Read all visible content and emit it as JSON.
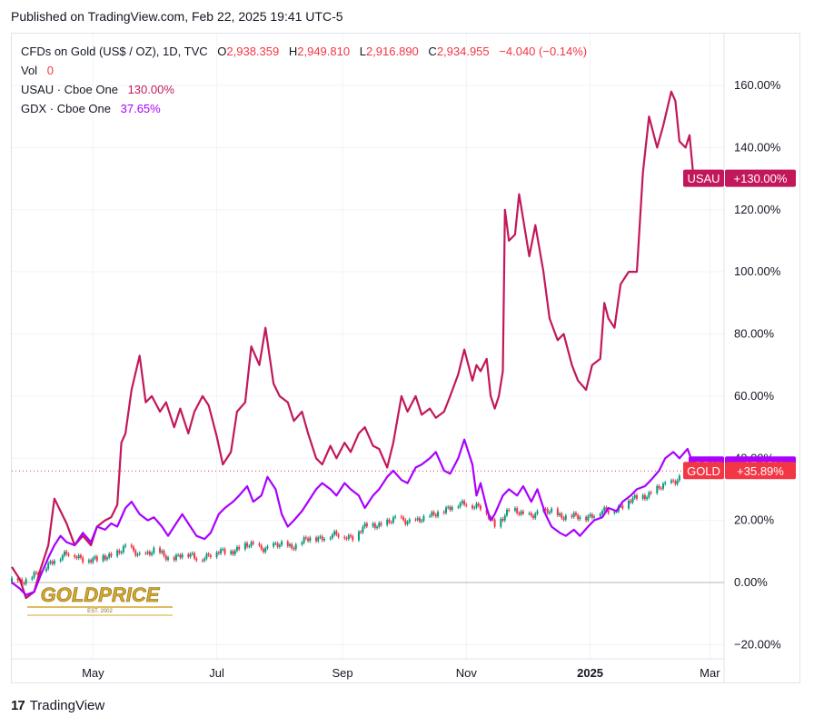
{
  "header": {
    "published": "Published on TradingView.com, Feb 22, 2025 19:41 UTC-5"
  },
  "legend": {
    "main_title": "CFDs on Gold (US$ / OZ), 1D, TVC",
    "open_label": "O",
    "open_value": "2,938.359",
    "high_label": "H",
    "high_value": "2,949.810",
    "low_label": "L",
    "low_value": "2,916.890",
    "close_label": "C",
    "close_value": "2,934.955",
    "change_value": "−4.040 (−0.14%)",
    "vol_label": "Vol",
    "vol_value": "0",
    "usau_label": "USAU · Cboe One",
    "usau_value": "130.00%",
    "gdx_label": "GDX · Cboe One",
    "gdx_value": "37.65%"
  },
  "watermark": {
    "brand": "GOLDPRICE",
    "tagline": "EST. 2002"
  },
  "footer": {
    "brand": "TradingView"
  },
  "colors": {
    "usau": "#c2185b",
    "gdx": "#aa00ff",
    "gold_up": "#089981",
    "gold_down": "#f23645",
    "grid": "#f0f3fa"
  },
  "chart_data": {
    "type": "line",
    "y_unit": "%",
    "ylim": [
      -22,
      170
    ],
    "y_ticks": [
      "160.00%",
      "140.00%",
      "120.00%",
      "100.00%",
      "80.00%",
      "60.00%",
      "40.00%",
      "20.00%",
      "0.00%",
      "−20.00%"
    ],
    "y_tick_values": [
      160,
      140,
      120,
      100,
      80,
      60,
      40,
      20,
      0,
      -20
    ],
    "x_range": [
      "2024-03-22",
      "2025-03-08"
    ],
    "x_ticks": [
      {
        "label": "May",
        "date": "2024-05-01"
      },
      {
        "label": "Jul",
        "date": "2024-07-01"
      },
      {
        "label": "Sep",
        "date": "2024-09-01"
      },
      {
        "label": "Nov",
        "date": "2024-11-01"
      },
      {
        "label": "2025",
        "date": "2025-01-01",
        "bold": true
      },
      {
        "label": "Mar",
        "date": "2025-03-01"
      }
    ],
    "grid": true,
    "baseline_value": 0,
    "series": [
      {
        "name": "USAU",
        "badge": "USAU",
        "badge_value": "+130.00%",
        "last": 130.0,
        "points": [
          [
            "2024-03-22",
            5
          ],
          [
            "2024-03-26",
            1
          ],
          [
            "2024-03-29",
            -5
          ],
          [
            "2024-04-02",
            -3
          ],
          [
            "2024-04-05",
            4
          ],
          [
            "2024-04-09",
            12
          ],
          [
            "2024-04-12",
            27
          ],
          [
            "2024-04-15",
            23
          ],
          [
            "2024-04-18",
            19
          ],
          [
            "2024-04-22",
            12
          ],
          [
            "2024-04-26",
            15
          ],
          [
            "2024-04-30",
            12
          ],
          [
            "2024-05-03",
            18
          ],
          [
            "2024-05-07",
            20
          ],
          [
            "2024-05-10",
            21
          ],
          [
            "2024-05-13",
            25
          ],
          [
            "2024-05-15",
            45
          ],
          [
            "2024-05-17",
            48
          ],
          [
            "2024-05-20",
            62
          ],
          [
            "2024-05-24",
            73
          ],
          [
            "2024-05-27",
            58
          ],
          [
            "2024-05-30",
            60
          ],
          [
            "2024-06-03",
            55
          ],
          [
            "2024-06-06",
            58
          ],
          [
            "2024-06-10",
            50
          ],
          [
            "2024-06-13",
            56
          ],
          [
            "2024-06-17",
            48
          ],
          [
            "2024-06-20",
            55
          ],
          [
            "2024-06-24",
            60
          ],
          [
            "2024-06-27",
            57
          ],
          [
            "2024-07-01",
            47
          ],
          [
            "2024-07-04",
            38
          ],
          [
            "2024-07-08",
            42
          ],
          [
            "2024-07-11",
            55
          ],
          [
            "2024-07-15",
            58
          ],
          [
            "2024-07-18",
            76
          ],
          [
            "2024-07-22",
            70
          ],
          [
            "2024-07-25",
            82
          ],
          [
            "2024-07-29",
            64
          ],
          [
            "2024-08-01",
            60
          ],
          [
            "2024-08-05",
            58
          ],
          [
            "2024-08-08",
            52
          ],
          [
            "2024-08-12",
            55
          ],
          [
            "2024-08-15",
            48
          ],
          [
            "2024-08-19",
            40
          ],
          [
            "2024-08-22",
            38
          ],
          [
            "2024-08-26",
            44
          ],
          [
            "2024-08-29",
            40
          ],
          [
            "2024-09-02",
            45
          ],
          [
            "2024-09-05",
            42
          ],
          [
            "2024-09-09",
            48
          ],
          [
            "2024-09-12",
            50
          ],
          [
            "2024-09-16",
            44
          ],
          [
            "2024-09-19",
            43
          ],
          [
            "2024-09-23",
            37
          ],
          [
            "2024-09-26",
            45
          ],
          [
            "2024-09-30",
            60
          ],
          [
            "2024-10-03",
            55
          ],
          [
            "2024-10-07",
            60
          ],
          [
            "2024-10-10",
            54
          ],
          [
            "2024-10-14",
            56
          ],
          [
            "2024-10-17",
            53
          ],
          [
            "2024-10-21",
            55
          ],
          [
            "2024-10-24",
            60
          ],
          [
            "2024-10-28",
            67
          ],
          [
            "2024-10-31",
            75
          ],
          [
            "2024-11-04",
            65
          ],
          [
            "2024-11-06",
            70
          ],
          [
            "2024-11-08",
            68
          ],
          [
            "2024-11-11",
            72
          ],
          [
            "2024-11-13",
            60
          ],
          [
            "2024-11-15",
            56
          ],
          [
            "2024-11-17",
            60
          ],
          [
            "2024-11-19",
            68
          ],
          [
            "2024-11-20",
            120
          ],
          [
            "2024-11-22",
            110
          ],
          [
            "2024-11-25",
            112
          ],
          [
            "2024-11-27",
            125
          ],
          [
            "2024-12-02",
            105
          ],
          [
            "2024-12-05",
            115
          ],
          [
            "2024-12-09",
            100
          ],
          [
            "2024-12-12",
            85
          ],
          [
            "2024-12-16",
            78
          ],
          [
            "2024-12-19",
            80
          ],
          [
            "2024-12-23",
            70
          ],
          [
            "2024-12-26",
            65
          ],
          [
            "2024-12-30",
            62
          ],
          [
            "2025-01-02",
            70
          ],
          [
            "2025-01-06",
            72
          ],
          [
            "2025-01-08",
            90
          ],
          [
            "2025-01-10",
            85
          ],
          [
            "2025-01-13",
            82
          ],
          [
            "2025-01-16",
            96
          ],
          [
            "2025-01-20",
            100
          ],
          [
            "2025-01-24",
            100
          ],
          [
            "2025-01-27",
            132
          ],
          [
            "2025-01-30",
            150
          ],
          [
            "2025-02-03",
            140
          ],
          [
            "2025-02-06",
            147
          ],
          [
            "2025-02-10",
            158
          ],
          [
            "2025-02-12",
            155
          ],
          [
            "2025-02-14",
            142
          ],
          [
            "2025-02-17",
            140
          ],
          [
            "2025-02-19",
            144
          ],
          [
            "2025-02-21",
            130
          ]
        ]
      },
      {
        "name": "GDX",
        "badge": "GDX",
        "badge_value": "+37.65%",
        "last": 37.65,
        "points": [
          [
            "2024-03-22",
            0
          ],
          [
            "2024-03-26",
            -2
          ],
          [
            "2024-03-29",
            -4
          ],
          [
            "2024-04-02",
            -3
          ],
          [
            "2024-04-05",
            2
          ],
          [
            "2024-04-09",
            8
          ],
          [
            "2024-04-12",
            12
          ],
          [
            "2024-04-15",
            15
          ],
          [
            "2024-04-18",
            13
          ],
          [
            "2024-04-22",
            12
          ],
          [
            "2024-04-26",
            16
          ],
          [
            "2024-04-30",
            13
          ],
          [
            "2024-05-03",
            18
          ],
          [
            "2024-05-07",
            17
          ],
          [
            "2024-05-10",
            19
          ],
          [
            "2024-05-13",
            18
          ],
          [
            "2024-05-17",
            24
          ],
          [
            "2024-05-20",
            26
          ],
          [
            "2024-05-24",
            22
          ],
          [
            "2024-05-28",
            20
          ],
          [
            "2024-05-31",
            21
          ],
          [
            "2024-06-04",
            18
          ],
          [
            "2024-06-07",
            15
          ],
          [
            "2024-06-11",
            19
          ],
          [
            "2024-06-14",
            22
          ],
          [
            "2024-06-18",
            18
          ],
          [
            "2024-06-21",
            15
          ],
          [
            "2024-06-25",
            14
          ],
          [
            "2024-06-28",
            16
          ],
          [
            "2024-07-02",
            22
          ],
          [
            "2024-07-05",
            24
          ],
          [
            "2024-07-09",
            26
          ],
          [
            "2024-07-12",
            28
          ],
          [
            "2024-07-16",
            31
          ],
          [
            "2024-07-19",
            26
          ],
          [
            "2024-07-23",
            28
          ],
          [
            "2024-07-26",
            34
          ],
          [
            "2024-07-30",
            30
          ],
          [
            "2024-08-02",
            22
          ],
          [
            "2024-08-05",
            18
          ],
          [
            "2024-08-08",
            20
          ],
          [
            "2024-08-12",
            23
          ],
          [
            "2024-08-15",
            26
          ],
          [
            "2024-08-19",
            30
          ],
          [
            "2024-08-22",
            32
          ],
          [
            "2024-08-26",
            30
          ],
          [
            "2024-08-29",
            28
          ],
          [
            "2024-09-02",
            32
          ],
          [
            "2024-09-05",
            30
          ],
          [
            "2024-09-09",
            28
          ],
          [
            "2024-09-12",
            24
          ],
          [
            "2024-09-16",
            28
          ],
          [
            "2024-09-19",
            30
          ],
          [
            "2024-09-23",
            34
          ],
          [
            "2024-09-26",
            36
          ],
          [
            "2024-09-30",
            33
          ],
          [
            "2024-10-03",
            32
          ],
          [
            "2024-10-07",
            37
          ],
          [
            "2024-10-10",
            38
          ],
          [
            "2024-10-14",
            40
          ],
          [
            "2024-10-17",
            42
          ],
          [
            "2024-10-21",
            36
          ],
          [
            "2024-10-24",
            35
          ],
          [
            "2024-10-28",
            40
          ],
          [
            "2024-10-31",
            46
          ],
          [
            "2024-11-04",
            38
          ],
          [
            "2024-11-06",
            28
          ],
          [
            "2024-11-08",
            32
          ],
          [
            "2024-11-11",
            24
          ],
          [
            "2024-11-13",
            20
          ],
          [
            "2024-11-15",
            22
          ],
          [
            "2024-11-19",
            28
          ],
          [
            "2024-11-22",
            30
          ],
          [
            "2024-11-26",
            28
          ],
          [
            "2024-11-29",
            31
          ],
          [
            "2024-12-03",
            26
          ],
          [
            "2024-12-06",
            30
          ],
          [
            "2024-12-10",
            22
          ],
          [
            "2024-12-13",
            18
          ],
          [
            "2024-12-17",
            16
          ],
          [
            "2024-12-20",
            15
          ],
          [
            "2024-12-24",
            17
          ],
          [
            "2024-12-27",
            15
          ],
          [
            "2024-12-31",
            18
          ],
          [
            "2025-01-03",
            20
          ],
          [
            "2025-01-07",
            21
          ],
          [
            "2025-01-10",
            24
          ],
          [
            "2025-01-14",
            23
          ],
          [
            "2025-01-17",
            26
          ],
          [
            "2025-01-21",
            28
          ],
          [
            "2025-01-24",
            30
          ],
          [
            "2025-01-28",
            31
          ],
          [
            "2025-01-31",
            33
          ],
          [
            "2025-02-04",
            36
          ],
          [
            "2025-02-07",
            40
          ],
          [
            "2025-02-11",
            42
          ],
          [
            "2025-02-14",
            40
          ],
          [
            "2025-02-18",
            43
          ],
          [
            "2025-02-21",
            37.65
          ]
        ]
      },
      {
        "name": "GOLD",
        "badge": "GOLD",
        "badge_value": "+35.89%",
        "last": 35.89,
        "points": [
          [
            "2024-03-22",
            0
          ],
          [
            "2024-03-29",
            1
          ],
          [
            "2024-04-05",
            3
          ],
          [
            "2024-04-12",
            8
          ],
          [
            "2024-04-19",
            9
          ],
          [
            "2024-04-26",
            8
          ],
          [
            "2024-05-03",
            7
          ],
          [
            "2024-05-10",
            9
          ],
          [
            "2024-05-17",
            11
          ],
          [
            "2024-05-24",
            9
          ],
          [
            "2024-05-31",
            10
          ],
          [
            "2024-06-07",
            8
          ],
          [
            "2024-06-14",
            9
          ],
          [
            "2024-06-21",
            8
          ],
          [
            "2024-06-28",
            9
          ],
          [
            "2024-07-05",
            10
          ],
          [
            "2024-07-12",
            11
          ],
          [
            "2024-07-19",
            12
          ],
          [
            "2024-07-26",
            11
          ],
          [
            "2024-08-02",
            12
          ],
          [
            "2024-08-09",
            12
          ],
          [
            "2024-08-16",
            14
          ],
          [
            "2024-08-23",
            15
          ],
          [
            "2024-08-30",
            15
          ],
          [
            "2024-09-06",
            15
          ],
          [
            "2024-09-13",
            18
          ],
          [
            "2024-09-20",
            19
          ],
          [
            "2024-09-27",
            20
          ],
          [
            "2024-10-04",
            20
          ],
          [
            "2024-10-11",
            20
          ],
          [
            "2024-10-18",
            23
          ],
          [
            "2024-10-25",
            24
          ],
          [
            "2024-11-01",
            26
          ],
          [
            "2024-11-08",
            24
          ],
          [
            "2024-11-15",
            19
          ],
          [
            "2024-11-22",
            23
          ],
          [
            "2024-11-29",
            22
          ],
          [
            "2024-12-06",
            22
          ],
          [
            "2024-12-13",
            23
          ],
          [
            "2024-12-20",
            21
          ],
          [
            "2024-12-27",
            21
          ],
          [
            "2025-01-03",
            22
          ],
          [
            "2025-01-10",
            23
          ],
          [
            "2025-01-17",
            25
          ],
          [
            "2025-01-24",
            27
          ],
          [
            "2025-01-31",
            29
          ],
          [
            "2025-02-07",
            31
          ],
          [
            "2025-02-14",
            34
          ],
          [
            "2025-02-21",
            35.89
          ]
        ]
      }
    ]
  }
}
